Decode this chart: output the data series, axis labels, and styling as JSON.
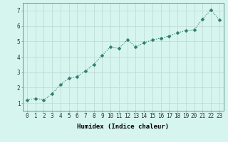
{
  "x": [
    0,
    1,
    2,
    3,
    4,
    5,
    6,
    7,
    8,
    9,
    10,
    11,
    12,
    13,
    14,
    15,
    16,
    17,
    18,
    19,
    20,
    21,
    22,
    23
  ],
  "y": [
    1.2,
    1.3,
    1.2,
    1.6,
    2.2,
    2.6,
    2.7,
    3.1,
    3.5,
    4.1,
    4.65,
    4.55,
    5.1,
    4.65,
    4.9,
    5.1,
    5.2,
    5.35,
    5.55,
    5.7,
    5.75,
    6.45,
    7.05,
    6.4
  ],
  "line_color": "#2d7b6e",
  "marker": "D",
  "marker_size": 2.5,
  "bg_color": "#d6f5ef",
  "grid_color": "#c0ddd8",
  "xlabel": "Humidex (Indice chaleur)",
  "ylim": [
    0.5,
    7.5
  ],
  "xlim": [
    -0.5,
    23.5
  ],
  "yticks": [
    1,
    2,
    3,
    4,
    5,
    6,
    7
  ],
  "xticks": [
    0,
    1,
    2,
    3,
    4,
    5,
    6,
    7,
    8,
    9,
    10,
    11,
    12,
    13,
    14,
    15,
    16,
    17,
    18,
    19,
    20,
    21,
    22,
    23
  ],
  "label_fontsize": 6.5,
  "tick_fontsize": 5.5
}
